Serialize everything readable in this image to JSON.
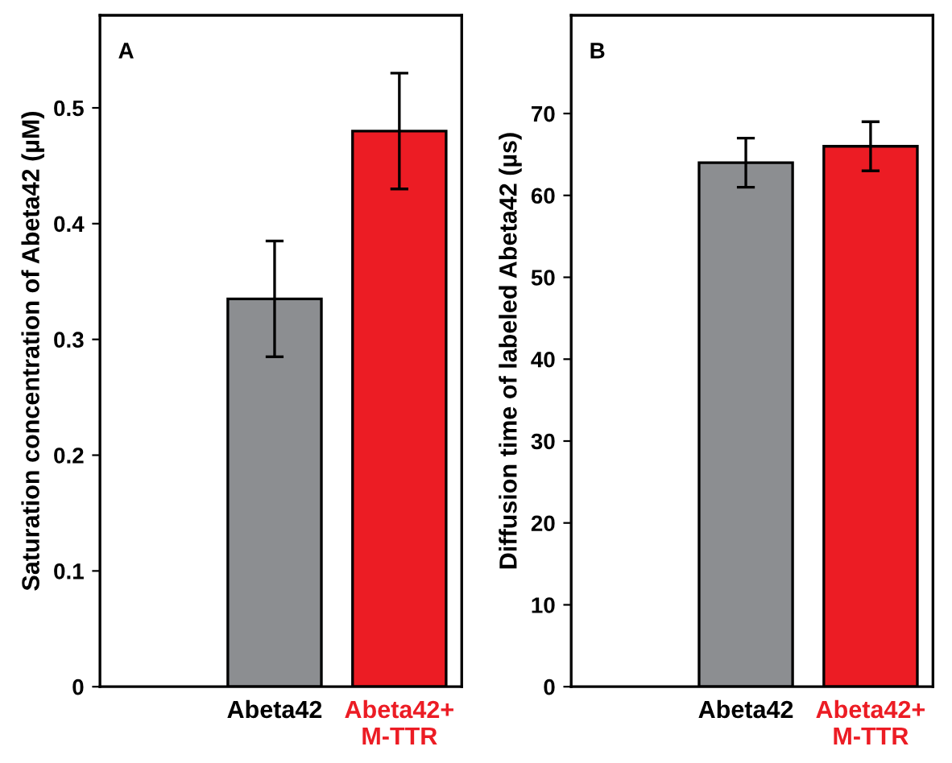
{
  "chart_data": [
    {
      "type": "bar",
      "title": "A",
      "ylabel": "Saturation concentration of Abeta42 (µM)",
      "categories": [
        "Abeta42",
        "Abeta42+\nM-TTR"
      ],
      "values": [
        0.335,
        0.48
      ],
      "colors": [
        "#8c8e91",
        "#ec1c24"
      ],
      "errors": [
        0.05,
        0.05
      ],
      "ylim": [
        0,
        0.58
      ],
      "yticks": [
        0,
        0.1,
        0.2,
        0.3,
        0.4,
        0.5
      ],
      "grid": false,
      "legend": false
    },
    {
      "type": "bar",
      "title": "B",
      "ylabel": "Diffusion time of labeled Abeta42 (µs)",
      "categories": [
        "Abeta42",
        "Abeta42+\nM-TTR"
      ],
      "values": [
        64,
        66
      ],
      "colors": [
        "#8c8e91",
        "#ec1c24"
      ],
      "errors": [
        3,
        3
      ],
      "ylim": [
        0,
        82
      ],
      "yticks": [
        0,
        10,
        20,
        30,
        40,
        50,
        60,
        70
      ],
      "grid": false,
      "legend": false
    }
  ]
}
